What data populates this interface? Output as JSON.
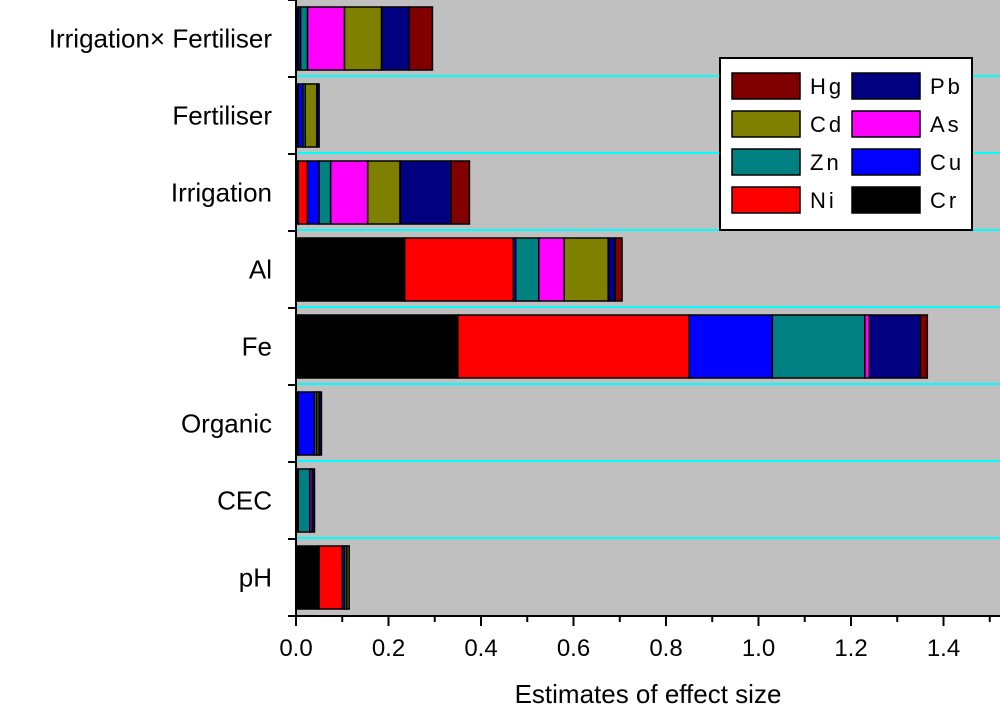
{
  "chart_data": {
    "type": "bar",
    "orientation": "horizontal",
    "stacked": true,
    "title": "",
    "xlabel": "Estimates of effect size",
    "ylabel": "",
    "xlim": [
      0.0,
      1.5
    ],
    "xticks": [
      "0.0",
      "0.2",
      "0.4",
      "0.6",
      "0.8",
      "1.0",
      "1.2",
      "1.4"
    ],
    "grid": "horizontal separator lines",
    "legend_position": "top-right",
    "background": "#c0c0c0",
    "separator_color": "#00ffff",
    "categories": [
      "Irrigation× Fertiliser",
      "Fertiliser",
      "Irrigation",
      "Al",
      "Fe",
      "Organic",
      "CEC",
      "pH"
    ],
    "series": [
      {
        "name": "Cr",
        "color": "#000000",
        "values": [
          0.005,
          0.005,
          0.005,
          0.235,
          0.35,
          0.005,
          0.005,
          0.05
        ]
      },
      {
        "name": "Ni",
        "color": "#ff0000",
        "values": [
          0.0,
          0.0,
          0.02,
          0.235,
          0.5,
          0.0,
          0.0,
          0.05
        ]
      },
      {
        "name": "Cu",
        "color": "#0000ff",
        "values": [
          0.005,
          0.01,
          0.025,
          0.005,
          0.18,
          0.035,
          0.0,
          0.005
        ]
      },
      {
        "name": "Zn",
        "color": "#008080",
        "values": [
          0.015,
          0.005,
          0.025,
          0.05,
          0.2,
          0.005,
          0.025,
          0.005
        ]
      },
      {
        "name": "As",
        "color": "#ff00ff",
        "values": [
          0.08,
          0.0,
          0.08,
          0.055,
          0.01,
          0.0,
          0.005,
          0.0
        ]
      },
      {
        "name": "Cd",
        "color": "#808000",
        "values": [
          0.08,
          0.025,
          0.07,
          0.095,
          0.0,
          0.005,
          0.0,
          0.005
        ]
      },
      {
        "name": "Pb",
        "color": "#000080",
        "values": [
          0.06,
          0.005,
          0.11,
          0.015,
          0.11,
          0.005,
          0.005,
          0.0
        ]
      },
      {
        "name": "Hg",
        "color": "#800000",
        "values": [
          0.05,
          0.0,
          0.04,
          0.015,
          0.015,
          0.0,
          0.0,
          0.0
        ]
      }
    ],
    "legend_order": [
      "Hg",
      "Pb",
      "Cd",
      "As",
      "Zn",
      "Cu",
      "Ni",
      "Cr"
    ]
  }
}
